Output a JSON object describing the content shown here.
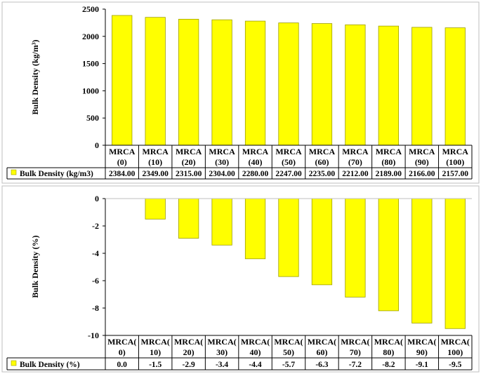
{
  "chart_data": [
    {
      "type": "bar",
      "categories": [
        [
          "MRCA",
          "(0)"
        ],
        [
          "MRCA",
          "(10)"
        ],
        [
          "MRCA",
          "(20)"
        ],
        [
          "MRCA",
          "(30)"
        ],
        [
          "MRCA",
          "(40)"
        ],
        [
          "MRCA",
          "(50)"
        ],
        [
          "MRCA",
          "(60)"
        ],
        [
          "MRCA",
          "(70)"
        ],
        [
          "MRCA",
          "(80)"
        ],
        [
          "MRCA",
          "(90)"
        ],
        [
          "MRCA",
          "(100)"
        ]
      ],
      "series": [
        {
          "name": "Bulk Density (kg/m3)",
          "values": [
            2384,
            2349,
            2315,
            2304,
            2280,
            2247,
            2235,
            2212,
            2189,
            2166,
            2157
          ],
          "labels": [
            "2384.00",
            "2349.00",
            "2315.00",
            "2304.00",
            "2280.00",
            "2247.00",
            "2235.00",
            "2212.00",
            "2189.00",
            "2166.00",
            "2157.00"
          ]
        }
      ],
      "ylabel": "Bulk Density (kg/m³)",
      "ylim": [
        0,
        2500
      ],
      "yticks": [
        0,
        500,
        1000,
        1500,
        2000,
        2500
      ],
      "ytick_labels": [
        "0",
        "500",
        "1000",
        "1500",
        "2000",
        "2500"
      ],
      "grid": false,
      "legend": "data-table",
      "bar_color": "#ffff00",
      "bar_border": "#9e9e00"
    },
    {
      "type": "bar",
      "categories": [
        [
          "MRCA(",
          "0)"
        ],
        [
          "MRCA(",
          "10)"
        ],
        [
          "MRCA(",
          "20)"
        ],
        [
          "MRCA(",
          "30)"
        ],
        [
          "MRCA(",
          "40)"
        ],
        [
          "MRCA(",
          "50)"
        ],
        [
          "MRCA(",
          "60)"
        ],
        [
          "MRCA(",
          "70)"
        ],
        [
          "MRCA(",
          "80)"
        ],
        [
          "MRCA(",
          "90)"
        ],
        [
          "MRCA(",
          "100)"
        ]
      ],
      "series": [
        {
          "name": "Bulk Density (%)",
          "values": [
            0.0,
            -1.5,
            -2.9,
            -3.4,
            -4.4,
            -5.7,
            -6.3,
            -7.2,
            -8.2,
            -9.1,
            -9.5
          ],
          "labels": [
            "0.0",
            "-1.5",
            "-2.9",
            "-3.4",
            "-4.4",
            "-5.7",
            "-6.3",
            "-7.2",
            "-8.2",
            "-9.1",
            "-9.5"
          ]
        }
      ],
      "ylabel": "Bulk Density (%)",
      "ylim": [
        -10,
        0
      ],
      "yticks": [
        0,
        -2,
        -4,
        -6,
        -8,
        -10
      ],
      "ytick_labels": [
        "0",
        "-2",
        "-4",
        "-6",
        "-8",
        "-10"
      ],
      "grid": false,
      "legend": "data-table",
      "bar_color": "#ffff00",
      "bar_border": "#9e9e00"
    }
  ]
}
